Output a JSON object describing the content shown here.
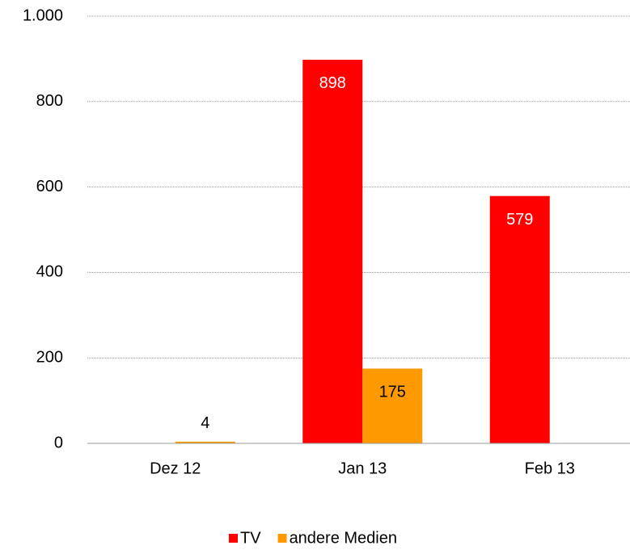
{
  "chart_data": {
    "type": "bar",
    "categories": [
      "Dez 12",
      "Jan 13",
      "Feb 13"
    ],
    "series": [
      {
        "name": "TV",
        "color": "#ff0000",
        "values": [
          null,
          898,
          579
        ]
      },
      {
        "name": "andere Medien",
        "color": "#ff9900",
        "values": [
          4,
          175,
          null
        ]
      }
    ],
    "ylim": [
      0,
      1000
    ],
    "yticks": [
      0,
      200,
      400,
      600,
      800,
      {
        "value": 1000,
        "label": "1.000"
      }
    ],
    "grid": true,
    "legend": "bottom"
  }
}
